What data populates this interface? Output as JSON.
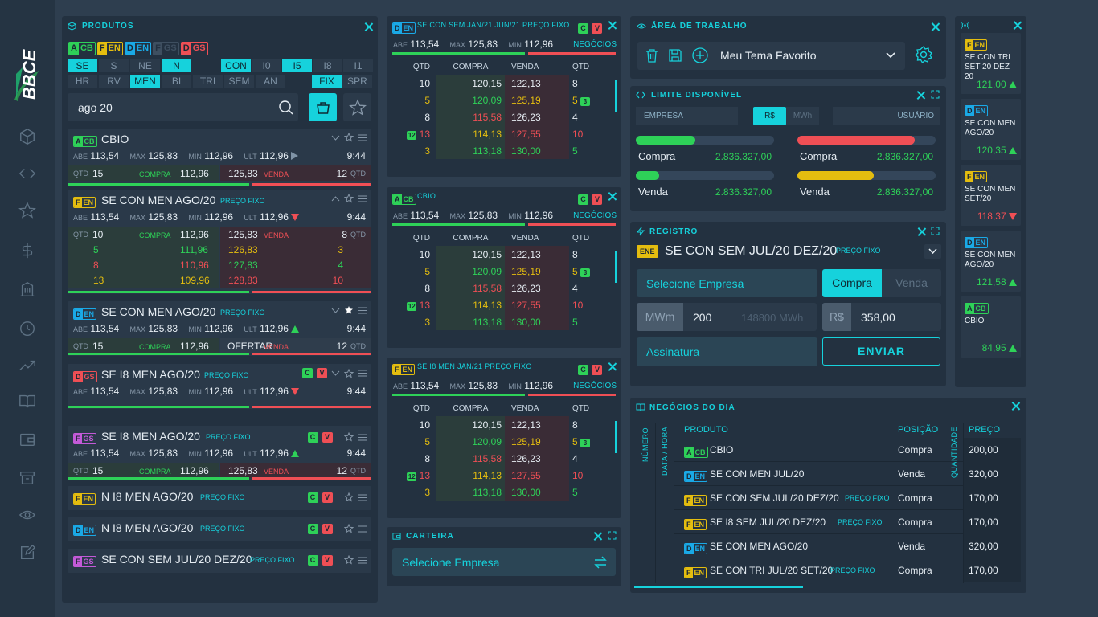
{
  "brand": {
    "logo": "BBCE"
  },
  "sidebar": {
    "icons": [
      "cube-icon",
      "code-icon",
      "star-icon",
      "dollar-icon",
      "building-icon",
      "clock-icon",
      "trend-icon",
      "book-icon",
      "wallet-icon",
      "archive-icon",
      "eye-icon",
      "edit-icon"
    ]
  },
  "produtos": {
    "title": "PRODUTOS",
    "tags": [
      {
        "a": "A",
        "b": "CB",
        "cls": "tag-acb"
      },
      {
        "a": "F",
        "b": "EN",
        "cls": "tag-fen"
      },
      {
        "a": "D",
        "b": "EN",
        "cls": "tag-den"
      },
      {
        "a": "F",
        "b": "GS",
        "cls": "tag-fgs2"
      },
      {
        "a": "D",
        "b": "GS",
        "cls": "tag-dgs"
      }
    ],
    "row1": [
      "SE",
      "S",
      "NE",
      "N"
    ],
    "row1b": [
      "CON",
      "I0",
      "I5",
      "I8",
      "I1"
    ],
    "row2": [
      "HR",
      "RV",
      "MEN",
      "BI",
      "TRI",
      "SEM",
      "AN"
    ],
    "row2b": [
      "FIX",
      "SPR"
    ],
    "search": "ago 20",
    "labels": {
      "abe": "ABE",
      "max": "MAX",
      "min": "MIN",
      "ult": "ULT",
      "qtd": "QTD",
      "compra": "COMPRA",
      "venda": "VENDA",
      "preco_fixo": "PREÇO FIXO",
      "ofertar": "OFERTAR"
    },
    "cards": [
      {
        "name": "CBIO",
        "abe": "113,54",
        "max": "125,83",
        "min": "112,96",
        "ult": "112,96",
        "time": "9:44",
        "qtd_c": "15",
        "compra": "112,96",
        "venda": "125,83",
        "qtd_v": "12"
      },
      {
        "name": "SE CON MEN AGO/20",
        "abe": "113,54",
        "max": "125,83",
        "min": "112,96",
        "ult": "112,96",
        "time": "9:44",
        "qtd_c": "10",
        "compra": "112,96",
        "venda": "125,83",
        "qtd_v": "8",
        "depth": [
          [
            "5",
            "111,96",
            "126,83",
            "3"
          ],
          [
            "8",
            "110,96",
            "127,83",
            "4"
          ],
          [
            "13",
            "109,96",
            "128,83",
            "10"
          ]
        ]
      },
      {
        "name": "SE CON MEN AGO/20",
        "abe": "113,54",
        "max": "125,83",
        "min": "112,96",
        "ult": "112,96",
        "time": "9:44",
        "qtd_c": "15",
        "compra": "112,96",
        "qtd_v": "12"
      },
      {
        "name": "SE I8 MEN AGO/20",
        "abe": "113,54",
        "max": "125,83",
        "min": "112,96",
        "ult": "112,96",
        "time": "9:44"
      },
      {
        "name": "SE I8 MEN AGO/20",
        "abe": "113,54",
        "max": "125,83",
        "min": "112,96",
        "ult": "112,96",
        "time": "9:44",
        "qtd_c": "15",
        "compra": "112,96",
        "venda": "125,83",
        "qtd_v": "12"
      },
      {
        "name": "N I8 MEN AGO/20"
      },
      {
        "name": "N I8 MEN AGO/20"
      },
      {
        "name": "SE CON SEM JUL/20 DEZ/20"
      }
    ]
  },
  "books": [
    {
      "title": "SE CON SEM JAN/21 JUN/21 PREÇO FIXO",
      "abe": "113,54",
      "max": "125,83",
      "min": "112,96",
      "negocios": "NEGÓCIOS"
    },
    {
      "title": "CBIO",
      "abe": "113,54",
      "max": "125,83",
      "min": "112,96",
      "negocios": "NEGÓCIOS"
    },
    {
      "title": "SE I8 MEN JAN/21 PREÇO FIXO",
      "abe": "113,54",
      "max": "125,83",
      "min": "112,96",
      "negocios": "NEGÓCIOS"
    }
  ],
  "book_headers": [
    "QTD",
    "COMPRA",
    "VENDA",
    "QTD"
  ],
  "book_rows": [
    [
      "10",
      "120,15",
      "122,13",
      "8",
      ""
    ],
    [
      "5",
      "120,09",
      "125,19",
      "5",
      "3"
    ],
    [
      "8",
      "115,58",
      "126,23",
      "4",
      ""
    ],
    [
      "13",
      "114,13",
      "127,55",
      "10",
      ""
    ],
    [
      "3",
      "113,18",
      "130,00",
      "5",
      ""
    ]
  ],
  "book_row4_badge": "12",
  "carteira": {
    "title": "CARTEIRA",
    "select": "Selecione Empresa"
  },
  "area": {
    "title": "ÁREA DE TRABALHO",
    "tema": "Meu Tema Favorito"
  },
  "limite": {
    "title": "LIMITE DISPONÍVEL",
    "empresa": "EMPRESA",
    "rs": "R$",
    "mwh": "MWh",
    "usuario": "USUÁRIO",
    "items": [
      {
        "label": "Compra",
        "value": "2.836.327,00",
        "fill": 0.43
      },
      {
        "label": "Compra",
        "value": "2.836.327,00",
        "fill": 0.85
      },
      {
        "label": "Venda",
        "value": "2.836.327,00",
        "fill": 0.17
      },
      {
        "label": "Venda",
        "value": "2.836.327,00",
        "fill": 0.55
      }
    ]
  },
  "registro": {
    "title": "REGISTRO",
    "produto": "SE CON SEM JUL/20 DEZ/20",
    "preco_fixo": "PREÇO FIXO",
    "tag": "ENE",
    "empresa": "Selecione Empresa",
    "compra": "Compra",
    "venda": "Venda",
    "mwm": "MWm",
    "qtd": "200",
    "mwh_hint": "148800 MWh",
    "rs": "R$",
    "preco": "358,00",
    "assinatura": "Assinatura",
    "enviar": "ENVIAR"
  },
  "ticker": [
    {
      "tag": [
        "F",
        "EN"
      ],
      "cls": "tag-fen",
      "name": "SE CON TRI SET 20 DEZ 20",
      "price": "121,00",
      "dir": "up"
    },
    {
      "tag": [
        "D",
        "EN"
      ],
      "cls": "tag-den",
      "name": "SE CON MEN AGO/20",
      "price": "120,35",
      "dir": "up"
    },
    {
      "tag": [
        "F",
        "EN"
      ],
      "cls": "tag-fen",
      "name": "SE CON MEN SET/20",
      "price": "118,37",
      "dir": "down"
    },
    {
      "tag": [
        "D",
        "EN"
      ],
      "cls": "tag-den",
      "name": "SE CON MEN AGO/20",
      "price": "121,58",
      "dir": "up"
    },
    {
      "tag": [
        "A",
        "CB"
      ],
      "cls": "tag-acb",
      "name": "CBIO",
      "price": "84,95",
      "dir": "up"
    }
  ],
  "negocios": {
    "title": "NEGÓCIOS DO DIA",
    "numero": "NÚMERO",
    "data": "DATA / HORA",
    "produto": "PRODUTO",
    "posicao": "POSIÇÃO",
    "quantidade": "QUANTIDADE",
    "preco": "PREÇO",
    "preco_fixo": "PREÇO FIXO",
    "rows": [
      {
        "tag": [
          "A",
          "CB"
        ],
        "cls": "tag-acb",
        "produto": "CBIO",
        "pf": false,
        "posicao": "Compra",
        "preco": "200,00"
      },
      {
        "tag": [
          "D",
          "EN"
        ],
        "cls": "tag-den",
        "produto": "SE CON MEN JUL/20",
        "pf": false,
        "posicao": "Venda",
        "preco": "320,00"
      },
      {
        "tag": [
          "F",
          "EN"
        ],
        "cls": "tag-fen",
        "produto": "SE CON SEM JUL/20 DEZ/20",
        "pf": true,
        "posicao": "Compra",
        "preco": "170,00"
      },
      {
        "tag": [
          "F",
          "EN"
        ],
        "cls": "tag-fen",
        "produto": "SE I8 SEM JUL/20 DEZ/20",
        "pf": true,
        "posicao": "Compra",
        "preco": "170,00"
      },
      {
        "tag": [
          "D",
          "EN"
        ],
        "cls": "tag-den",
        "produto": "SE CON MEN AGO/20",
        "pf": false,
        "posicao": "Venda",
        "preco": "320,00"
      },
      {
        "tag": [
          "F",
          "EN"
        ],
        "cls": "tag-fen",
        "produto": "SE CON TRI JUL/20 SET/20",
        "pf": true,
        "posicao": "Compra",
        "preco": "170,00"
      }
    ]
  }
}
